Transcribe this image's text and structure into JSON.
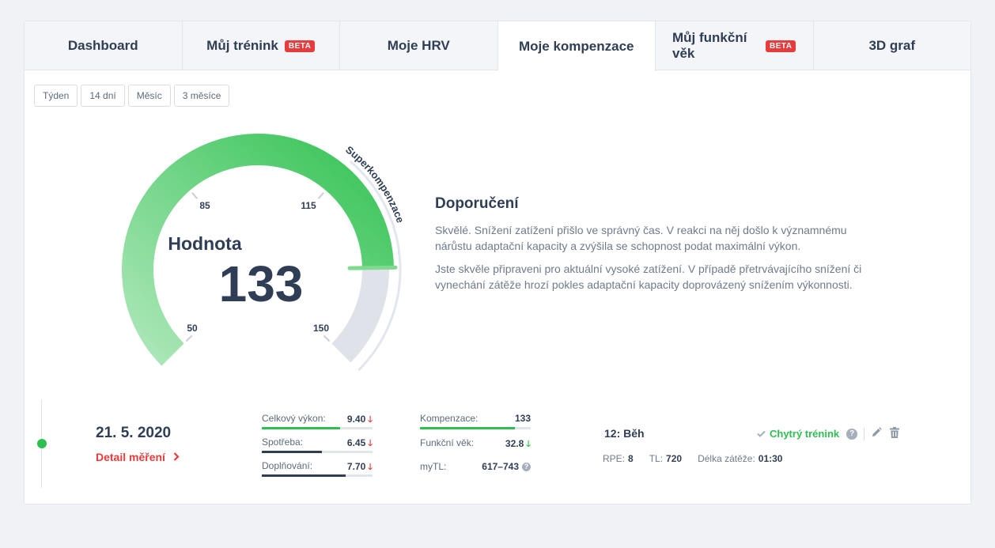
{
  "tabs": [
    {
      "label": "Dashboard",
      "badge": ""
    },
    {
      "label": "Můj trénink",
      "badge": "BETA"
    },
    {
      "label": "Moje HRV",
      "badge": ""
    },
    {
      "label": "Moje kompenzace",
      "badge": ""
    },
    {
      "label": "Můj funkční věk",
      "badge": "BETA"
    },
    {
      "label": "3D graf",
      "badge": ""
    }
  ],
  "active_tab": "Moje kompenzace",
  "periods": [
    "Týden",
    "14 dní",
    "Měsíc",
    "3 měsíce"
  ],
  "gauge": {
    "title": "Hodnota",
    "value": "133",
    "value_number": 133,
    "zone_label": "Superkompenzace",
    "ticks": [
      "50",
      "85",
      "115",
      "150"
    ],
    "colors": {
      "fill_light": "#a8e4b4",
      "fill_dark": "#33c253",
      "rest": "#dfe2e9",
      "marker": "#7fd98f"
    }
  },
  "recommendation": {
    "title": "Doporučení",
    "paragraphs": [
      "Skvělé. Snížení zatížení přišlo ve správný čas. V reakci na něj došlo k významnému nárůstu adaptační kapacity a zvýšila se schopnost podat maximální výkon.",
      "Jste skvěle připraveni pro aktuální vysoké zatížení. V případě přetrvávajícího snížení či vynechání zátěže hrozí pokles adaptační kapacity doprovázený snížením výkonnosti."
    ]
  },
  "record": {
    "date": "21. 5. 2020",
    "detail_link": "Detail měření",
    "metrics_left": [
      {
        "label": "Celkový výkon:",
        "value": "9.40",
        "trend": "down",
        "level": 0.71,
        "color": "#2dbf4f"
      },
      {
        "label": "Spotřeba:",
        "value": "6.45",
        "trend": "down",
        "level": 0.54,
        "color": "#2f3e54"
      },
      {
        "label": "Doplňování:",
        "value": "7.70",
        "trend": "down",
        "level": 0.76,
        "color": "#2f3e54"
      }
    ],
    "metrics_right": [
      {
        "label": "Kompenzace:",
        "value": "133",
        "level": 0.86,
        "color": "#2dbf4f"
      },
      {
        "label": "Funkční věk:",
        "value": "32.8",
        "trend": "down-green"
      },
      {
        "label": "myTL:",
        "value": "617–743",
        "help": "?"
      }
    ],
    "training": {
      "title": "12: Běh",
      "smart_label": "Chytrý trénink",
      "rpe_label": "RPE:",
      "rpe": "8",
      "tl_label": "TL:",
      "tl": "720",
      "duration_label": "Délka zátěže:",
      "duration": "01:30"
    }
  }
}
